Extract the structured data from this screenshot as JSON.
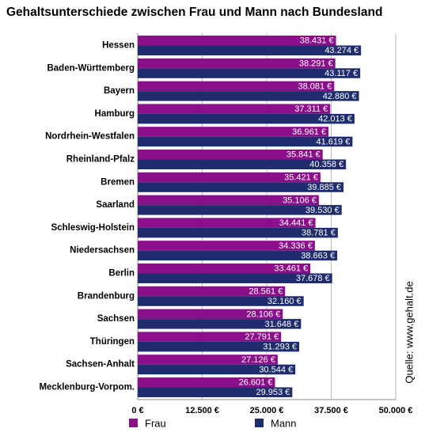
{
  "chart_data": {
    "type": "hbar",
    "title": "Gehaltsunterschiede zwischen Frau und Mann nach Bundesland",
    "source": "Quelle: www.gehalt.de",
    "categories": [
      "Hessen",
      "Baden-Württemberg",
      "Bayern",
      "Hamburg",
      "Nordrhein-Westfalen",
      "Rheinland-Pfalz",
      "Bremen",
      "Saarland",
      "Schleswig-Holstein",
      "Niedersachsen",
      "Berlin",
      "Brandenburg",
      "Sachsen",
      "Thüringen",
      "Sachsen-Anhalt",
      "Mecklenburg-Vorpom."
    ],
    "series": [
      {
        "name": "Frau",
        "color": "#8b0f8b",
        "values": [
          38431,
          38291,
          38081,
          37311,
          36961,
          35841,
          35421,
          35106,
          34441,
          34336,
          33461,
          28561,
          28106,
          27791,
          27126,
          26601
        ],
        "value_labels": [
          "38.431 €",
          "38.291 €",
          "38.081 €",
          "37.311 €",
          "36.961 €",
          "35.841 €",
          "35.421 €",
          "35.106 €",
          "34.441 €",
          "34.336 €",
          "33.461 €",
          "28.561 €",
          "28.106 €",
          "27.791 €",
          "27.126 €",
          "26.601 €"
        ]
      },
      {
        "name": "Mann",
        "color": "#1f2d6e",
        "values": [
          43274,
          43117,
          42880,
          42013,
          41619,
          40358,
          39885,
          39530,
          38781,
          38663,
          37678,
          32160,
          31648,
          31293,
          30544,
          29953
        ],
        "value_labels": [
          "43.274 €",
          "43.117 €",
          "42.880 €",
          "42.013 €",
          "41.619 €",
          "40.358 €",
          "39.885 €",
          "39.530 €",
          "38.781 €",
          "38.663 €",
          "37.678 €",
          "32.160 €",
          "31.648 €",
          "31.293 €",
          "30.544 €",
          "29.953 €"
        ]
      }
    ],
    "xlim": [
      0,
      50000
    ],
    "xticks": [
      {
        "value": 0,
        "label": "0 €"
      },
      {
        "value": 12500,
        "label": "12.500 €"
      },
      {
        "value": 25000,
        "label": "25.000 €"
      },
      {
        "value": 37500,
        "label": "37.500 €"
      },
      {
        "value": 50000,
        "label": "50.000 €"
      }
    ],
    "grid": true
  }
}
